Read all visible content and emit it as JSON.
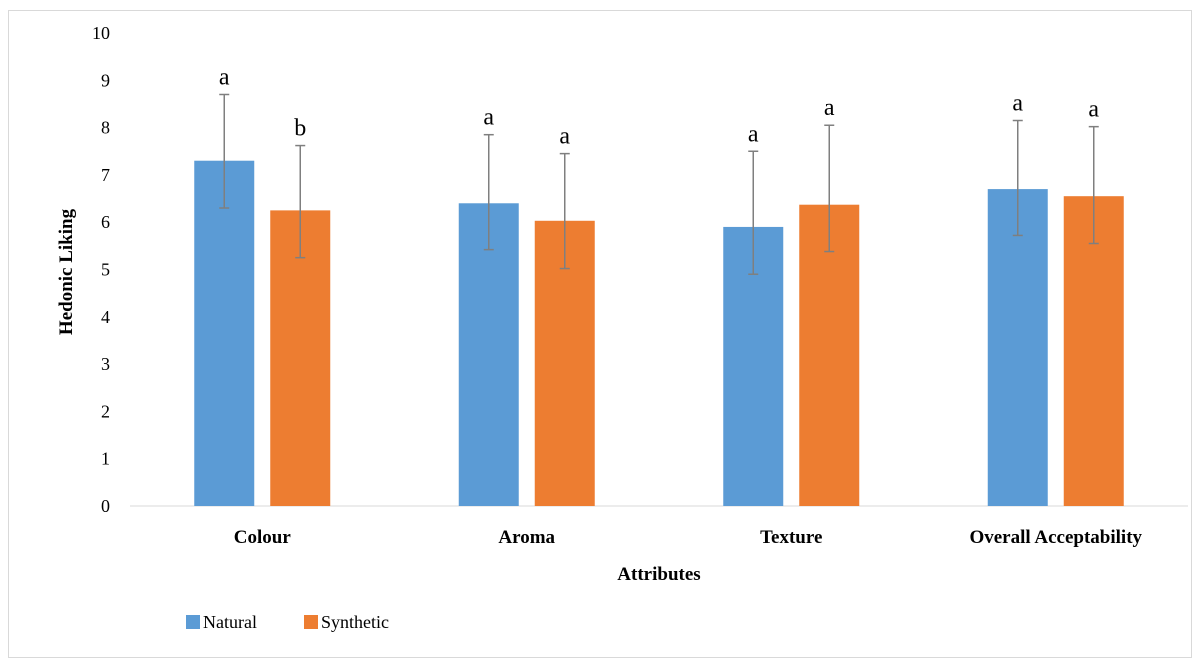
{
  "chart_data": {
    "type": "bar",
    "title": "",
    "xlabel": "Attributes",
    "ylabel": "Hedonic Liking",
    "ylim": [
      0,
      10
    ],
    "yticks": [
      0,
      1,
      2,
      3,
      4,
      5,
      6,
      7,
      8,
      9,
      10
    ],
    "categories": [
      "Colour",
      "Aroma",
      "Texture",
      "Overall Acceptability"
    ],
    "series": [
      {
        "name": "Natural",
        "color": "#5B9BD5",
        "values": [
          7.3,
          6.4,
          5.9,
          6.7
        ],
        "error_upper": [
          8.7,
          7.85,
          7.5,
          8.15
        ],
        "error_lower": [
          6.3,
          5.42,
          4.9,
          5.72
        ],
        "significance": [
          "a",
          "a",
          "a",
          "a"
        ]
      },
      {
        "name": "Synthetic",
        "color": "#ED7D31",
        "values": [
          6.25,
          6.03,
          6.37,
          6.55
        ],
        "error_upper": [
          7.62,
          7.45,
          8.05,
          8.02
        ],
        "error_lower": [
          5.25,
          5.02,
          5.38,
          5.55
        ],
        "significance": [
          "b",
          "a",
          "a",
          "a"
        ]
      }
    ],
    "grid": false,
    "legend_position": "bottom-left"
  }
}
